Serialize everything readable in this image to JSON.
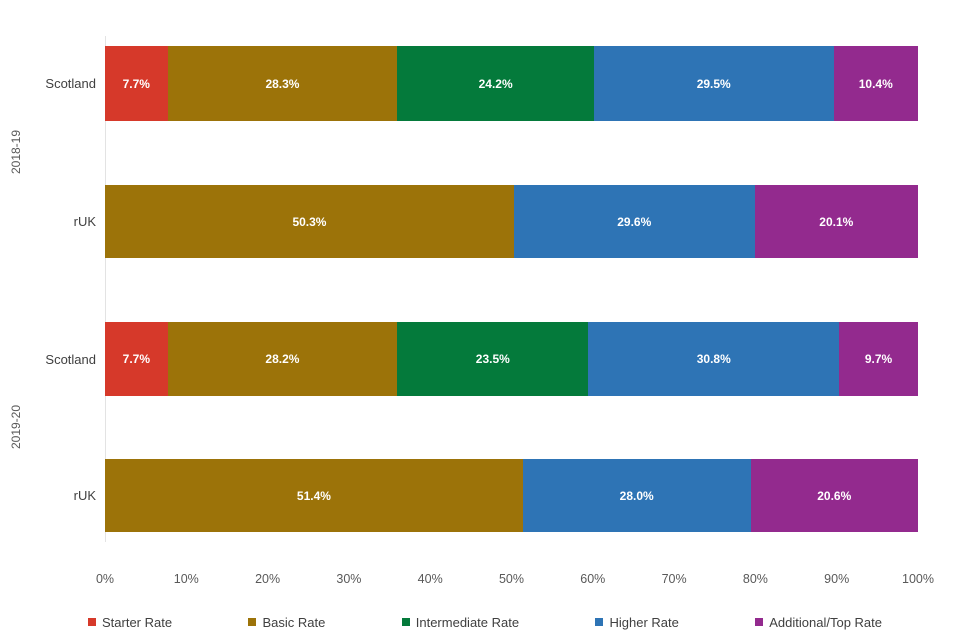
{
  "chart_data": {
    "type": "bar",
    "orientation": "horizontal",
    "stacked": true,
    "title": "",
    "xlabel": "",
    "ylabel": "",
    "xlim": [
      0,
      100
    ],
    "grid": false,
    "legend_position": "bottom",
    "x_ticks": [
      "0%",
      "10%",
      "20%",
      "30%",
      "40%",
      "50%",
      "60%",
      "70%",
      "80%",
      "90%",
      "100%"
    ],
    "groups": [
      "2018-19",
      "2019-20"
    ],
    "legend": [
      {
        "series": "Starter Rate",
        "color": "#d6392a"
      },
      {
        "series": "Basic Rate",
        "color": "#9c7309"
      },
      {
        "series": "Intermediate Rate",
        "color": "#047a3b"
      },
      {
        "series": "Higher Rate",
        "color": "#2e74b5"
      },
      {
        "series": "Additional/Top Rate",
        "color": "#932a8e"
      }
    ],
    "rows": [
      {
        "group": "2018-19",
        "label": "Scotland",
        "segments": [
          {
            "series": "Starter Rate",
            "value": 7.7,
            "label": "7.7%"
          },
          {
            "series": "Basic Rate",
            "value": 28.3,
            "label": "28.3%"
          },
          {
            "series": "Intermediate Rate",
            "value": 24.2,
            "label": "24.2%"
          },
          {
            "series": "Higher Rate",
            "value": 29.5,
            "label": "29.5%"
          },
          {
            "series": "Additional/Top Rate",
            "value": 10.4,
            "label": "10.4%"
          }
        ]
      },
      {
        "group": "2018-19",
        "label": "rUK",
        "segments": [
          {
            "series": "Basic Rate",
            "value": 50.3,
            "label": "50.3%"
          },
          {
            "series": "Higher Rate",
            "value": 29.6,
            "label": "29.6%"
          },
          {
            "series": "Additional/Top Rate",
            "value": 20.1,
            "label": "20.1%"
          }
        ]
      },
      {
        "group": "2019-20",
        "label": "Scotland",
        "segments": [
          {
            "series": "Starter Rate",
            "value": 7.7,
            "label": "7.7%"
          },
          {
            "series": "Basic Rate",
            "value": 28.2,
            "label": "28.2%"
          },
          {
            "series": "Intermediate Rate",
            "value": 23.5,
            "label": "23.5%"
          },
          {
            "series": "Higher Rate",
            "value": 30.8,
            "label": "30.8%"
          },
          {
            "series": "Additional/Top Rate",
            "value": 9.7,
            "label": "9.7%"
          }
        ]
      },
      {
        "group": "2019-20",
        "label": "rUK",
        "segments": [
          {
            "series": "Basic Rate",
            "value": 51.4,
            "label": "51.4%"
          },
          {
            "series": "Higher Rate",
            "value": 28.0,
            "label": "28.0%"
          },
          {
            "series": "Additional/Top Rate",
            "value": 20.6,
            "label": "20.6%"
          }
        ]
      }
    ]
  }
}
